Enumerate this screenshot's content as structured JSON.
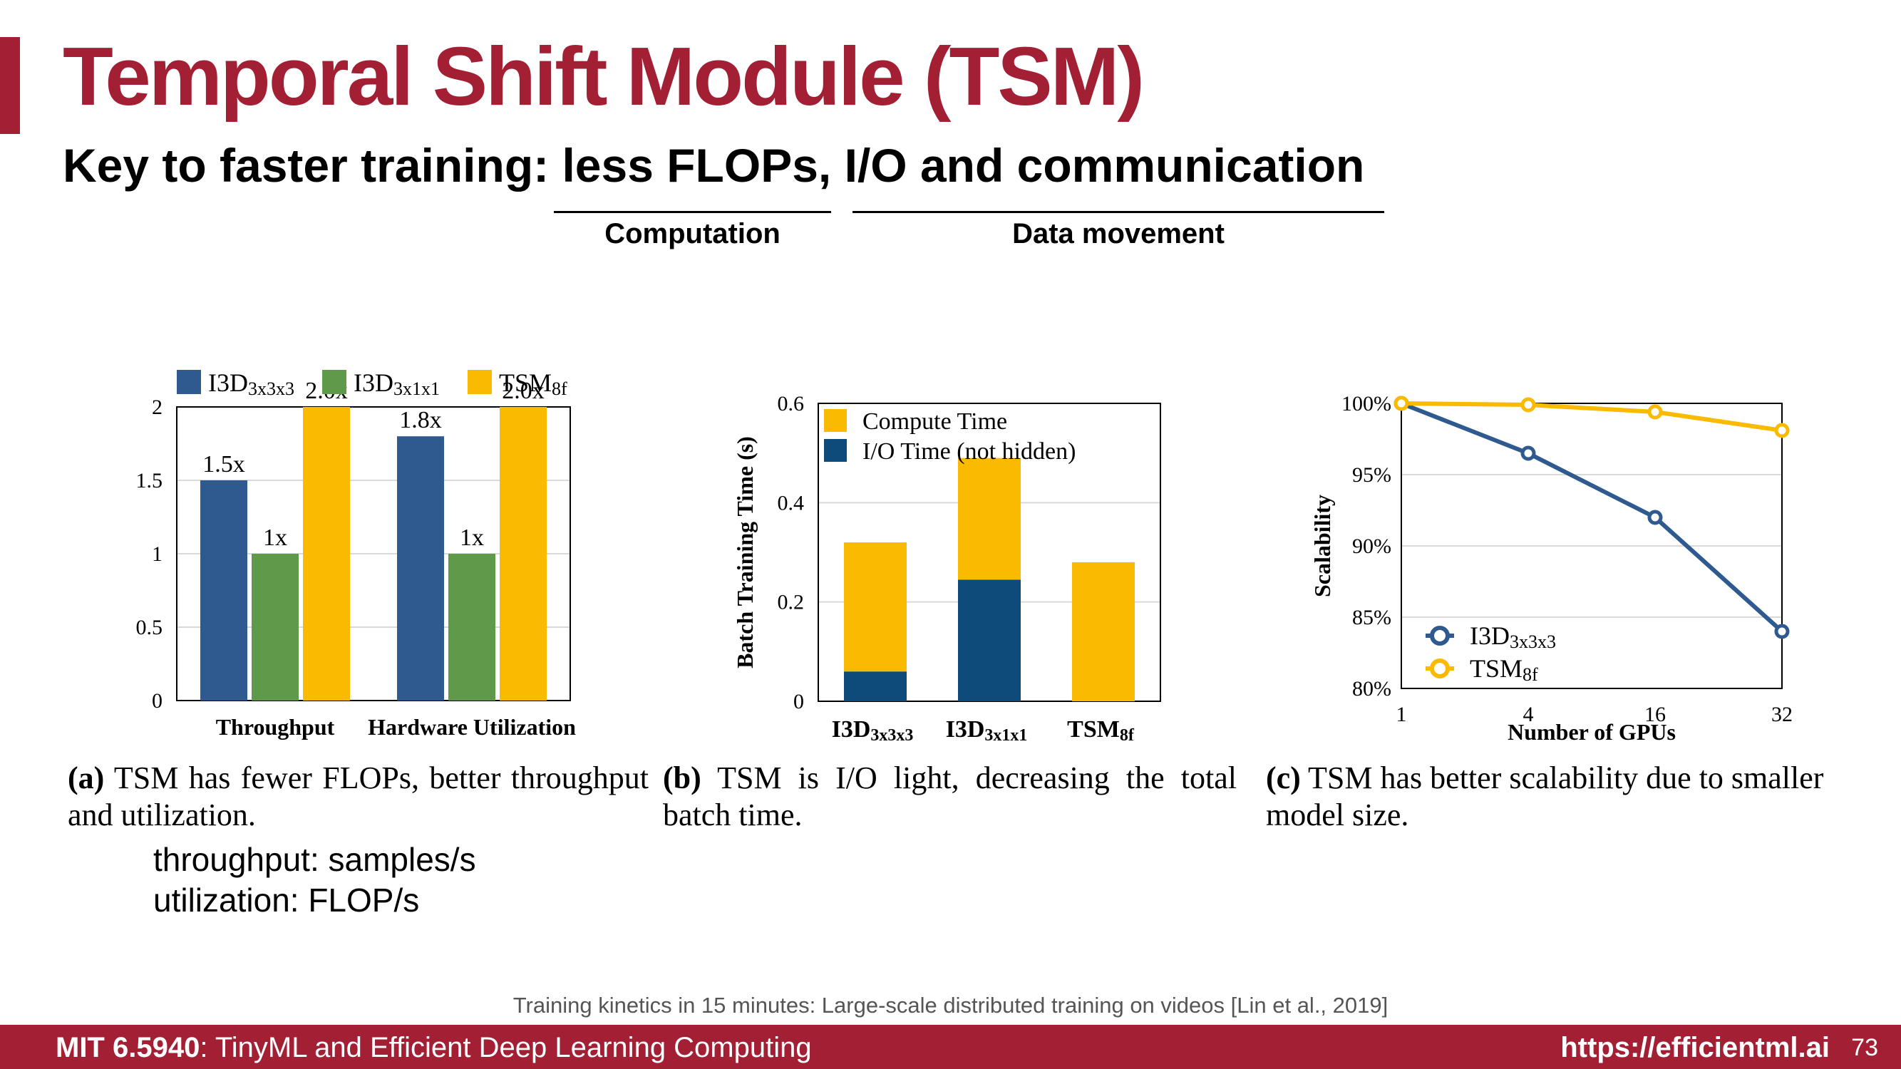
{
  "slide": {
    "title": "Temporal Shift Module (TSM)",
    "subtitle": "Key to faster training: less FLOPs, I/O and communication",
    "groups": {
      "computation": "Computation",
      "data_movement": "Data movement"
    },
    "captions": {
      "a_tag": "(a)",
      "a_text": " TSM has fewer FLOPs, better throughput and utilization.",
      "b_tag": "(b)",
      "b_text": " TSM is I/O light, decreasing the total batch time.",
      "c_tag": "(c)",
      "c_text": " TSM has better scalability due to smaller model size."
    },
    "note_lines": [
      "throughput: samples/s",
      "utilization: FLOP/s"
    ],
    "citation": "Training kinetics in 15 minutes: Large-scale distributed training on videos [Lin et al., 2019]",
    "footer": {
      "course_code": "MIT 6.5940",
      "course_name": ": TinyML and Efficient Deep Learning Computing",
      "url": "https://efficientml.ai",
      "page": "73"
    },
    "colors": {
      "accent": "#a31f34",
      "blue": "#2f5a8f",
      "green": "#5f9a4b",
      "yellow": "#f9ba00",
      "navy": "#0e4b7b"
    }
  },
  "chart_data": [
    {
      "type": "bar",
      "categories": [
        "Throughput",
        "Hardware Utilization"
      ],
      "series": [
        {
          "name": "I3D",
          "sub": "3x3x3",
          "values": [
            1.5,
            1.8
          ],
          "labels": [
            "1.5x",
            "1.8x"
          ]
        },
        {
          "name": "I3D",
          "sub": "3x1x1",
          "values": [
            1.0,
            1.0
          ],
          "labels": [
            "1x",
            "1x"
          ]
        },
        {
          "name": "TSM",
          "sub": "8f",
          "values": [
            2.0,
            2.0
          ],
          "labels": [
            "2.0x",
            "2.0x"
          ]
        }
      ],
      "ylim": [
        0,
        2
      ],
      "yticks": [
        "0",
        "0.5",
        "1",
        "1.5",
        "2"
      ],
      "ytick_values": [
        0,
        0.5,
        1,
        1.5,
        2
      ],
      "legend": "top",
      "grid": true
    },
    {
      "type": "bar",
      "stacked": true,
      "categories": [
        {
          "name": "I3D",
          "sub": "3x3x3"
        },
        {
          "name": "I3D",
          "sub": "3x1x1"
        },
        {
          "name": "TSM",
          "sub": "8f"
        }
      ],
      "series": [
        {
          "name": "I/O Time (not hidden)",
          "values": [
            0.06,
            0.245,
            0.0
          ]
        },
        {
          "name": "Compute Time",
          "values": [
            0.26,
            0.245,
            0.28
          ]
        }
      ],
      "legend_order": [
        "Compute Time",
        "I/O Time (not hidden)"
      ],
      "ylabel": "Batch Training Time (s)",
      "ylim": [
        0,
        0.6
      ],
      "yticks": [
        "0",
        "0.2",
        "0.4",
        "0.6"
      ],
      "ytick_values": [
        0,
        0.2,
        0.4,
        0.6
      ],
      "legend": "top-left",
      "grid": true
    },
    {
      "type": "line",
      "x": [
        "1",
        "4",
        "16",
        "32"
      ],
      "series": [
        {
          "name": "I3D",
          "sub": "3x3x3",
          "values": [
            100,
            96.5,
            92,
            84
          ]
        },
        {
          "name": "TSM",
          "sub": "8f",
          "values": [
            100,
            99.9,
            99.4,
            98.1
          ]
        }
      ],
      "xlabel": "Number of GPUs",
      "ylabel": "Scalability",
      "ylim": [
        80,
        100
      ],
      "yticks": [
        "80%",
        "85%",
        "90%",
        "95%",
        "100%"
      ],
      "ytick_values": [
        80,
        85,
        90,
        95,
        100
      ],
      "legend": "bottom-left",
      "grid": true
    }
  ]
}
